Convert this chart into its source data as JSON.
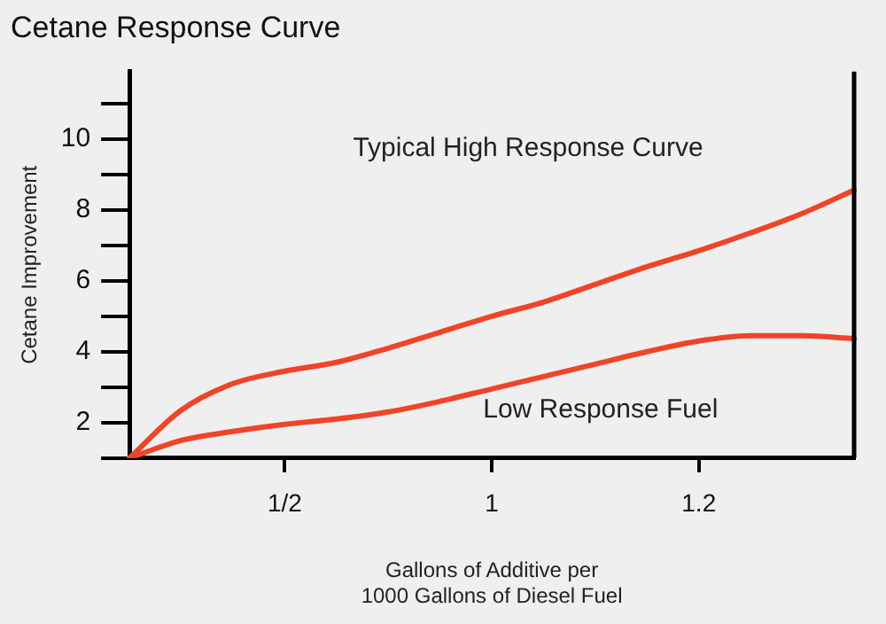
{
  "chart_data": {
    "type": "line",
    "title": "Cetane Response Curve",
    "xlabel": "Gallons of Additive per\n1000 Gallons of Diesel Fuel",
    "ylabel": "Cetane Improvement",
    "categories": [
      null,
      null,
      null,
      "1/2",
      null,
      null,
      null,
      "1",
      null,
      null,
      null,
      "1.2",
      null,
      null,
      null
    ],
    "ylim": [
      1,
      11.9
    ],
    "yticks": [
      {
        "value": 1,
        "label": null
      },
      2,
      {
        "value": 3,
        "label": null
      },
      4,
      {
        "value": 5,
        "label": null
      },
      6,
      {
        "value": 7,
        "label": null
      },
      8,
      {
        "value": 9,
        "label": null
      },
      10,
      {
        "value": 11,
        "label": null
      }
    ],
    "marker": "none",
    "line_style": "solid",
    "series": [
      {
        "color": "#f04428",
        "values": [
          1.0,
          2.35,
          3.1,
          3.45,
          3.7,
          4.1,
          4.55,
          5.0,
          5.4,
          5.9,
          6.4,
          6.85,
          7.35,
          7.9,
          8.56
        ]
      },
      {
        "color": "#f04428",
        "values": [
          1.0,
          1.5,
          1.75,
          1.95,
          2.1,
          2.3,
          2.6,
          2.95,
          3.3,
          3.65,
          4.0,
          4.3,
          4.45,
          4.45,
          4.37
        ]
      }
    ],
    "annotations": [
      "Typical High Response Curve",
      "Low Response Fuel"
    ]
  }
}
